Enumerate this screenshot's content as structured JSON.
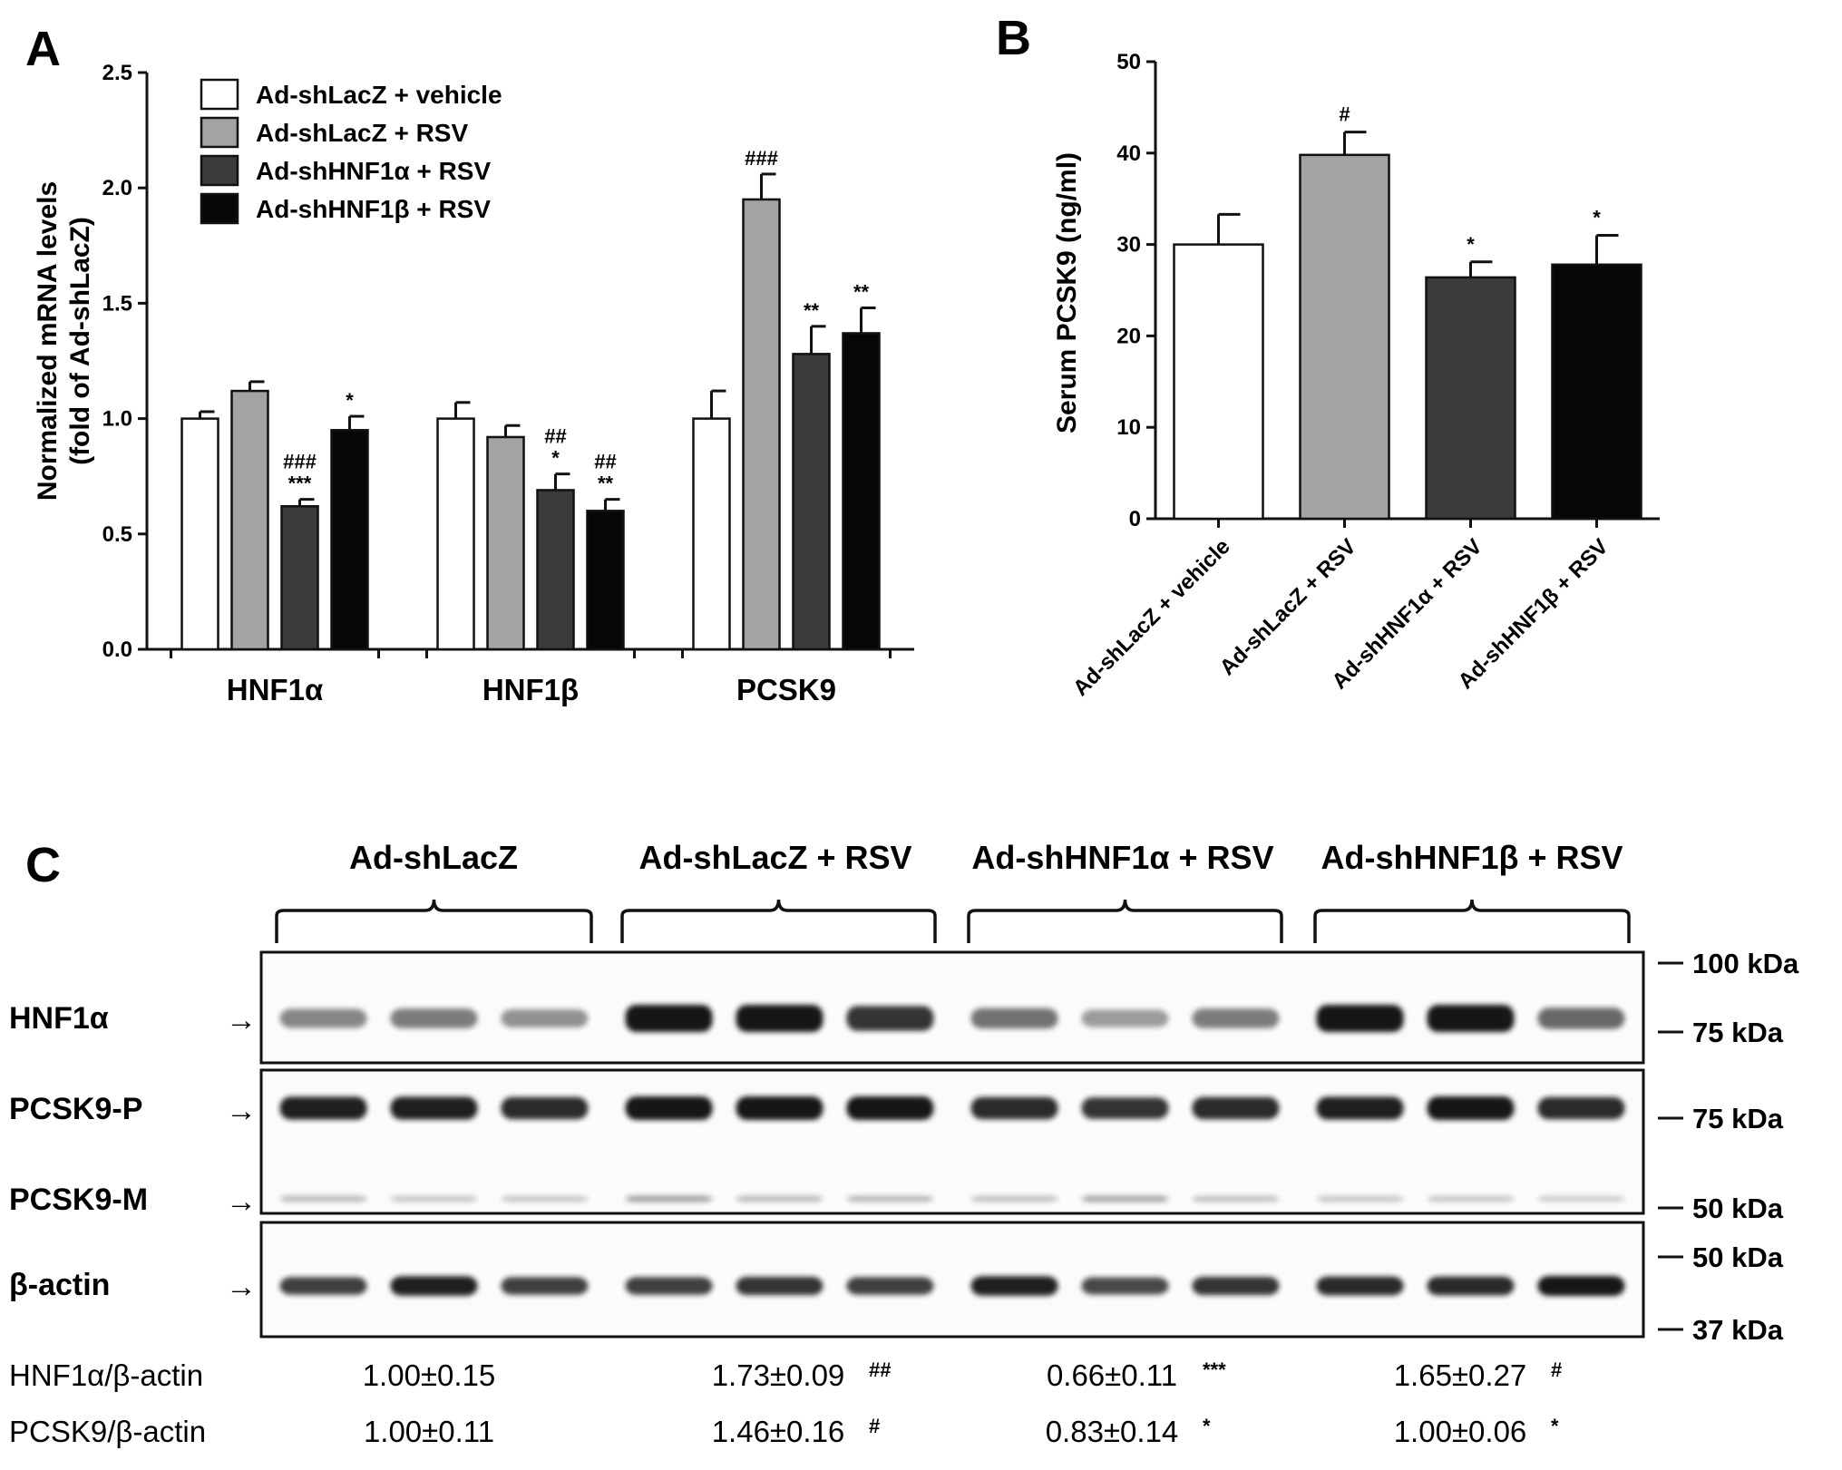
{
  "panel_letters": [
    "A",
    "B",
    "C"
  ],
  "colors": {
    "vehicle": "#ffffff",
    "rsv": "#a3a3a3",
    "sh_alpha": "#3b3b3b",
    "sh_beta": "#070707",
    "band": "#141414"
  },
  "chart_data": [
    {
      "type": "bar",
      "panel": "A",
      "ylabel": "Normalized mRNA levels\n(fold of Ad-shLacZ)",
      "xlabel": "",
      "ylim": [
        0,
        2.5
      ],
      "yticks": [
        "0.0",
        "0.5",
        "1.0",
        "1.5",
        "2.0",
        "2.5"
      ],
      "categories": [
        "HNF1α",
        "HNF1β",
        "PCSK9"
      ],
      "legend_position": "top-left",
      "series": [
        {
          "name": "Ad-shLacZ + vehicle",
          "color_key": "vehicle",
          "values": [
            1.0,
            1.0,
            1.0
          ],
          "errors": [
            0.03,
            0.07,
            0.12
          ],
          "marks": [
            "",
            "",
            ""
          ]
        },
        {
          "name": "Ad-shLacZ + RSV",
          "color_key": "rsv",
          "values": [
            1.12,
            0.92,
            1.95
          ],
          "errors": [
            0.04,
            0.05,
            0.11
          ],
          "marks": [
            "",
            "",
            "###"
          ]
        },
        {
          "name": "Ad-shHNF1α + RSV",
          "color_key": "sh_alpha",
          "values": [
            0.62,
            0.69,
            1.28
          ],
          "errors": [
            0.03,
            0.07,
            0.12
          ],
          "marks": [
            "###\n***",
            "##\n*",
            "**"
          ]
        },
        {
          "name": "Ad-shHNF1β + RSV",
          "color_key": "sh_beta",
          "values": [
            0.95,
            0.6,
            1.37
          ],
          "errors": [
            0.06,
            0.05,
            0.11
          ],
          "marks": [
            "*",
            "##\n**",
            "**"
          ]
        }
      ]
    },
    {
      "type": "bar",
      "panel": "B",
      "ylabel": "Serum  PCSK9 (ng/ml)",
      "xlabel": "",
      "ylim": [
        0,
        50
      ],
      "yticks": [
        "0",
        "10",
        "20",
        "30",
        "40",
        "50"
      ],
      "categories": [
        "Ad-shLacZ + vehicle",
        "Ad-shLacZ + RSV",
        "Ad-shHNF1α + RSV",
        "Ad-shHNF1β + RSV"
      ],
      "color_keys": [
        "vehicle",
        "rsv",
        "sh_alpha",
        "sh_beta"
      ],
      "values": [
        30.0,
        39.8,
        26.4,
        27.8
      ],
      "errors": [
        3.3,
        2.5,
        1.7,
        3.2
      ],
      "marks": [
        "",
        "#",
        "*",
        "*"
      ]
    }
  ],
  "blot": {
    "groups": [
      "Ad-shLacZ",
      "Ad-shLacZ + RSV",
      "Ad-shHNF1α + RSV",
      "Ad-shHNF1β + RSV"
    ],
    "row_labels": [
      "HNF1α",
      "PCSK9-P",
      "PCSK9-M",
      "β-actin"
    ],
    "arrow": "→",
    "markers_box1": [
      "100 kDa",
      "75 kDa"
    ],
    "markers_box2": [
      "75 kDa",
      "50 kDa"
    ],
    "markers_box3": [
      "50 kDa",
      "37 kDa"
    ],
    "band_intensity": {
      "hnf1a": [
        0.45,
        0.5,
        0.4,
        1.0,
        1.0,
        0.85,
        0.55,
        0.35,
        0.5,
        1.0,
        1.0,
        0.6
      ],
      "pcsk9_p": [
        0.95,
        0.95,
        0.9,
        1.0,
        1.0,
        1.0,
        0.9,
        0.85,
        0.9,
        0.95,
        1.0,
        0.9
      ],
      "pcsk9_m": [
        0.2,
        0.15,
        0.15,
        0.3,
        0.2,
        0.22,
        0.18,
        0.28,
        0.18,
        0.15,
        0.15,
        0.12
      ],
      "actin": [
        0.8,
        0.95,
        0.8,
        0.8,
        0.85,
        0.8,
        0.95,
        0.75,
        0.85,
        0.9,
        0.9,
        1.0
      ]
    },
    "quant_rows": [
      {
        "label": "HNF1α/β-actin",
        "values": [
          "1.00±0.15",
          "1.73±0.09",
          "0.66±0.11",
          "1.65±0.27"
        ],
        "marks": [
          "",
          "##",
          "***",
          "#"
        ]
      },
      {
        "label": "PCSK9/β-actin",
        "values": [
          "1.00±0.11",
          "1.46±0.16",
          "0.83±0.14",
          "1.00±0.06"
        ],
        "marks": [
          "",
          "#",
          "*",
          "*"
        ]
      }
    ]
  }
}
